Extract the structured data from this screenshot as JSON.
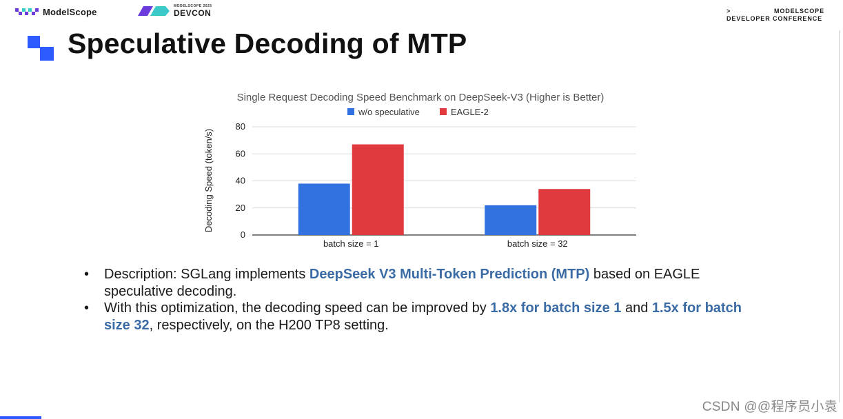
{
  "header": {
    "modelscope_logo": "ModelScope",
    "devcon_small": "MODELSCOPE 2025",
    "devcon_big": "DEVCON",
    "conference_arrow": ">",
    "conference_line1": "MODELSCOPE",
    "conference_line2": "DEVELOPER CONFERENCE"
  },
  "slide": {
    "title": "Speculative Decoding of MTP",
    "bullets": [
      {
        "parts": [
          {
            "text": "Description: SGLang implements ",
            "highlight": false
          },
          {
            "text": "DeepSeek V3 Multi-Token Prediction (MTP)",
            "highlight": true
          },
          {
            "text": " based on EAGLE speculative decoding.",
            "highlight": false
          }
        ]
      },
      {
        "parts": [
          {
            "text": "With this optimization, the decoding speed can be improved by ",
            "highlight": false
          },
          {
            "text": "1.8x for batch size 1",
            "highlight": true
          },
          {
            "text": " and ",
            "highlight": false
          },
          {
            "text": "1.5x for batch size 32",
            "highlight": true
          },
          {
            "text": ", respectively, on the H200 TP8 setting.",
            "highlight": false
          }
        ]
      }
    ]
  },
  "chart_data": {
    "type": "bar",
    "title": "Single Request Decoding Speed Benchmark on DeepSeek-V3 (Higher is Better)",
    "xlabel": "",
    "ylabel": "Decoding Speed (token/s)",
    "categories": [
      "batch size = 1",
      "batch size = 32"
    ],
    "series": [
      {
        "name": "w/o speculative",
        "color": "#3172e0",
        "values": [
          38,
          22
        ]
      },
      {
        "name": "EAGLE-2",
        "color": "#e0393e",
        "values": [
          67,
          34
        ]
      }
    ],
    "ylim": [
      0,
      80
    ],
    "yticks": [
      0,
      20,
      40,
      60,
      80
    ],
    "grid": true,
    "legend": "top-center"
  },
  "watermark": "CSDN @@程序员小袁",
  "colors": {
    "highlight": "#3b6ba5",
    "accent_blue": "#2e5bff",
    "logo_teal": "#3cc8c8",
    "logo_purple": "#6b3bdb"
  }
}
